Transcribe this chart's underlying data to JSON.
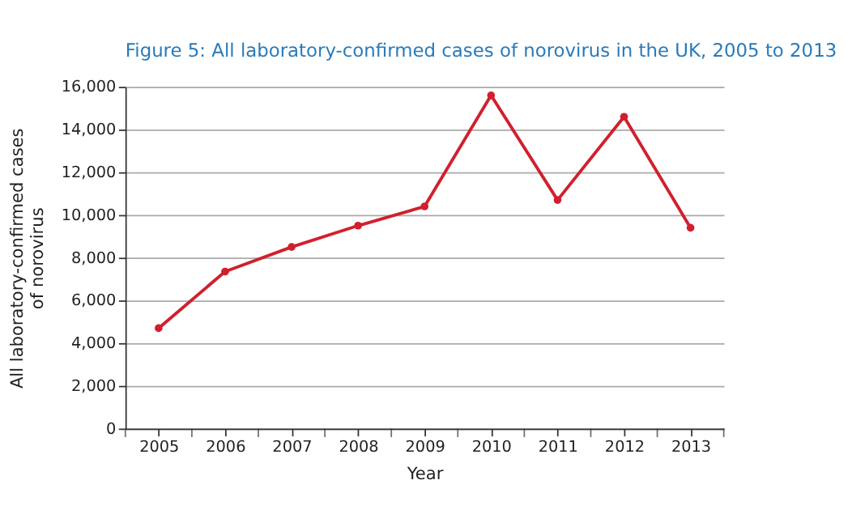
{
  "chart_data": {
    "type": "line",
    "title": "Figure 5: All laboratory-confirmed cases of norovirus in the UK, 2005 to 2013",
    "xlabel": "Year",
    "ylabel": "All laboratory-confirmed cases\nof norovirus",
    "categories": [
      "2005",
      "2006",
      "2007",
      "2008",
      "2009",
      "2010",
      "2011",
      "2012",
      "2013"
    ],
    "series": [
      {
        "color": "#d0202e",
        "values": [
          4700,
          7350,
          8500,
          9500,
          10400,
          15600,
          10700,
          14600,
          9400
        ]
      }
    ],
    "ylim": [
      0,
      16000
    ],
    "yticks": [
      0,
      {
        "value": 2000,
        "label": "2,000"
      },
      {
        "value": 4000,
        "label": "4,000"
      },
      {
        "value": 6000,
        "label": "6,000"
      },
      {
        "value": 8000,
        "label": "8,000"
      },
      {
        "value": 10000,
        "label": "10,000"
      },
      {
        "value": 12000,
        "label": "12,000"
      },
      {
        "value": 14000,
        "label": "14,000"
      },
      {
        "value": 16000,
        "label": "16,000"
      }
    ],
    "grid": "y",
    "marker": "circle",
    "line_style": "solid"
  }
}
